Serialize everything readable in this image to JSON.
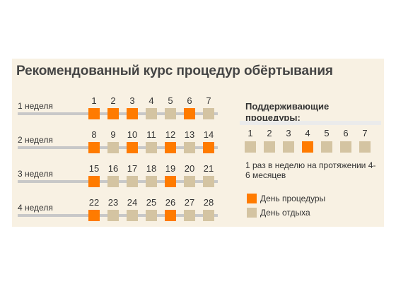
{
  "title": "Рекомендованный курс процедур обёртывания",
  "colors": {
    "procedure": "#ff7b00",
    "rest": "#d4c4a2",
    "panel": "#f8f1e3",
    "track": "#c8c8c8"
  },
  "weeks": [
    {
      "label": "1 неделя",
      "days": [
        "1",
        "2",
        "3",
        "4",
        "5",
        "6",
        "7"
      ],
      "procedure": [
        true,
        true,
        true,
        false,
        false,
        true,
        false
      ]
    },
    {
      "label": "2 неделя",
      "days": [
        "8",
        "9",
        "10",
        "11",
        "12",
        "13",
        "14"
      ],
      "procedure": [
        true,
        false,
        true,
        false,
        true,
        false,
        true
      ]
    },
    {
      "label": "3 неделя",
      "days": [
        "15",
        "16",
        "17",
        "18",
        "19",
        "20",
        "21"
      ],
      "procedure": [
        true,
        false,
        false,
        false,
        true,
        false,
        false
      ]
    },
    {
      "label": "4 неделя",
      "days": [
        "22",
        "23",
        "24",
        "25",
        "26",
        "27",
        "28"
      ],
      "procedure": [
        true,
        false,
        false,
        false,
        true,
        false,
        false
      ]
    }
  ],
  "support": {
    "title": "Поддерживающие процедуры:",
    "days": [
      "1",
      "2",
      "3",
      "4",
      "5",
      "6",
      "7"
    ],
    "procedure": [
      false,
      false,
      false,
      true,
      false,
      false,
      false
    ],
    "note": "1 раз в неделю на протяжении 4-6 месяцев"
  },
  "legend": [
    {
      "label": "День процедуры",
      "type": "procedure"
    },
    {
      "label": "День отдыха",
      "type": "rest"
    }
  ]
}
